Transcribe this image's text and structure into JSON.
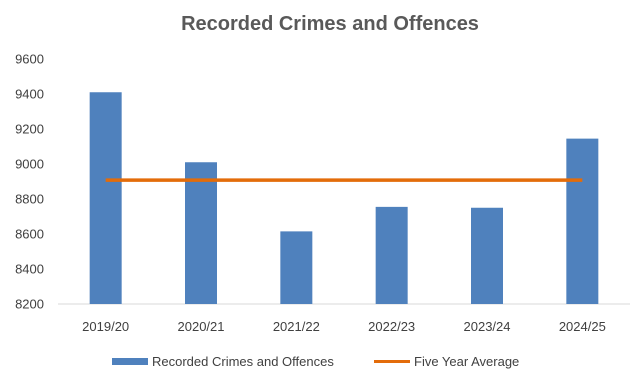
{
  "chart_data": {
    "type": "bar",
    "title": "Recorded Crimes and Offences",
    "xlabel": "",
    "ylabel": "",
    "categories": [
      "2019/20",
      "2020/21",
      "2021/22",
      "2022/23",
      "2023/24",
      "2024/25"
    ],
    "series": [
      {
        "name": "Recorded Crimes and Offences",
        "type": "bar",
        "color": "#4f81bd",
        "values": [
          9410,
          9010,
          8615,
          8755,
          8750,
          9145
        ]
      },
      {
        "name": "Five Year Average",
        "type": "line",
        "color": "#e36c0a",
        "values": [
          8908,
          8908,
          8908,
          8908,
          8908,
          8908
        ]
      }
    ],
    "ylim": [
      8200,
      9600
    ],
    "yticks": [
      8200,
      8400,
      8600,
      8800,
      9000,
      9200,
      9400,
      9600
    ],
    "grid": false,
    "legend_position": "bottom"
  }
}
